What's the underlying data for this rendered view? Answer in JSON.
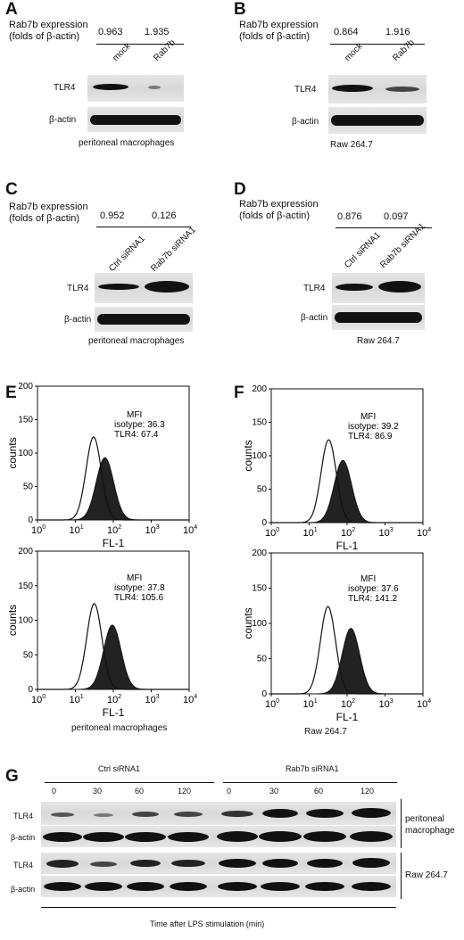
{
  "panels": {
    "A": {
      "label": "A",
      "expr_line1": "Rab7b expression",
      "expr_line2": "(folds of β-actin)",
      "values": [
        "0.963",
        "1.935"
      ],
      "lanes": [
        "mock",
        "Rab7b"
      ],
      "rows": [
        "TLR4",
        "β-actin"
      ],
      "caption": "peritoneal macrophages"
    },
    "B": {
      "label": "B",
      "expr_line1": "Rab7b expression",
      "expr_line2": "(folds of β-actin)",
      "values": [
        "0.864",
        "1.916"
      ],
      "lanes": [
        "mock",
        "Rab7b"
      ],
      "rows": [
        "TLR4",
        "β-actin"
      ],
      "caption": "Raw 264.7"
    },
    "C": {
      "label": "C",
      "expr_line1": "Rab7b expression",
      "expr_line2": "(folds of β-actin)",
      "values": [
        "0.952",
        "0.126"
      ],
      "lanes": [
        "Ctrl siRNA1",
        "Rab7b siRNA1"
      ],
      "rows": [
        "TLR4",
        "β-actin"
      ],
      "caption": "peritoneal macrophages"
    },
    "D": {
      "label": "D",
      "expr_line1": "Rab7b expression",
      "expr_line2": "(folds of β-actin)",
      "values": [
        "0.876",
        "0.097"
      ],
      "lanes": [
        "Ctrl siRNA1",
        "Rab7b siRNA1"
      ],
      "rows": [
        "TLR4",
        "β-actin"
      ],
      "caption": "Raw 264.7"
    },
    "E": {
      "label": "E",
      "caption": "peritoneal macrophages",
      "plots": [
        {
          "mfi": "MFI",
          "isotype": "isotype: 36.3",
          "tlr4": "TLR4: 67.4"
        },
        {
          "mfi": "MFI",
          "isotype": "isotype: 37.8",
          "tlr4": "TLR4: 105.6"
        }
      ]
    },
    "F": {
      "label": "F",
      "caption": "Raw 264.7",
      "plots": [
        {
          "mfi": "MFI",
          "isotype": "isotype: 39.2",
          "tlr4": "TLR4: 86.9"
        },
        {
          "mfi": "MFI",
          "isotype": "isotype: 37.6",
          "tlr4": "TLR4: 141.2"
        }
      ]
    },
    "G": {
      "label": "G",
      "group1": "Ctrl siRNA1",
      "group2": "Rab7b siRNA1",
      "times": [
        "0",
        "30",
        "60",
        "120",
        "0",
        "30",
        "60",
        "120"
      ],
      "rows": [
        "TLR4",
        "β-actin",
        "TLR4",
        "β-actin"
      ],
      "side1_line1": "peritoneal",
      "side1_line2": "macrophage",
      "side2": "Raw 264.7",
      "xlabel": "Time after LPS stimulation (min)"
    }
  },
  "flow_axis": {
    "ylabel": "counts",
    "xlabel": "FL-1",
    "yticks": [
      "200",
      "150",
      "100",
      "50",
      "0"
    ],
    "xtick_base": "10",
    "xtick_exps": [
      "0",
      "1",
      "2",
      "3",
      "4"
    ]
  },
  "chart_data": [
    {
      "type": "histogram",
      "panel": "E-top",
      "series": [
        {
          "name": "isotype",
          "mfi": 36.3
        },
        {
          "name": "TLR4",
          "mfi": 67.4
        }
      ],
      "ylabel": "counts",
      "xlabel": "FL-1",
      "ylim": [
        0,
        200
      ],
      "xscale": "log",
      "xlim": [
        1,
        10000
      ]
    },
    {
      "type": "histogram",
      "panel": "E-bottom",
      "series": [
        {
          "name": "isotype",
          "mfi": 37.8
        },
        {
          "name": "TLR4",
          "mfi": 105.6
        }
      ],
      "ylabel": "counts",
      "xlabel": "FL-1",
      "ylim": [
        0,
        200
      ],
      "xscale": "log",
      "xlim": [
        1,
        10000
      ]
    },
    {
      "type": "histogram",
      "panel": "F-top",
      "series": [
        {
          "name": "isotype",
          "mfi": 39.2
        },
        {
          "name": "TLR4",
          "mfi": 86.9
        }
      ],
      "ylabel": "counts",
      "xlabel": "FL-1",
      "ylim": [
        0,
        200
      ],
      "xscale": "log",
      "xlim": [
        1,
        10000
      ]
    },
    {
      "type": "histogram",
      "panel": "F-bottom",
      "series": [
        {
          "name": "isotype",
          "mfi": 37.6
        },
        {
          "name": "TLR4",
          "mfi": 141.2
        }
      ],
      "ylabel": "counts",
      "xlabel": "FL-1",
      "ylim": [
        0,
        200
      ],
      "xscale": "log",
      "xlim": [
        1,
        10000
      ]
    }
  ]
}
